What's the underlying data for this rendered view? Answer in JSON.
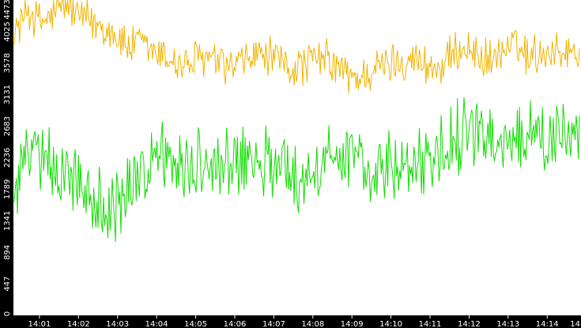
{
  "chart_data": {
    "type": "line",
    "background": "#ffffff",
    "frame_color": "#000000",
    "grid": false,
    "legend": "none",
    "title": "",
    "xlabel": "",
    "ylabel": "",
    "ylim": [
      0,
      4473
    ],
    "x_range": [
      "14:00:20",
      "14:14:52"
    ],
    "y_ticks": [
      "0",
      "447",
      "894",
      "1341",
      "1789",
      "2236",
      "2683",
      "3131",
      "3578",
      "4025",
      "4473"
    ],
    "x_ticks": [
      "14:01",
      "14:02",
      "14:03",
      "14:04",
      "14:05",
      "14:06",
      "14:07",
      "14:08",
      "14:09",
      "14:10",
      "14:11",
      "14:12",
      "14:13",
      "14:14",
      "14"
    ],
    "series": [
      {
        "color": "#f2b400",
        "x_start": "14:00:20",
        "x_end": "14:14:52",
        "anchors": [
          4000,
          4350,
          4150,
          4250,
          4450,
          4250,
          4150,
          4100,
          3950,
          3800,
          3850,
          3700,
          3650,
          3550,
          3600,
          3650,
          3550,
          3500,
          3600,
          3700,
          3650,
          3550,
          3500,
          3600,
          3650,
          3550,
          3400,
          3350,
          3500,
          3550,
          3600,
          3650,
          3550,
          3500,
          3650,
          3800,
          3700,
          3600,
          3750,
          3800,
          3700,
          3700,
          3800,
          3700,
          3750
        ],
        "noise": 350,
        "points": 520
      },
      {
        "color": "#11dd00",
        "x_start": "14:00:20",
        "x_end": "14:14:52",
        "anchors": [
          1700,
          2350,
          2200,
          2100,
          2000,
          1900,
          1700,
          1500,
          1450,
          1800,
          2000,
          2300,
          2250,
          2150,
          2200,
          2000,
          2100,
          2200,
          2150,
          2300,
          2200,
          2100,
          1900,
          2050,
          2150,
          2300,
          2200,
          2250,
          2100,
          2150,
          2200,
          2300,
          2200,
          2250,
          2400,
          2600,
          2550,
          2500,
          2600,
          2550,
          2500,
          2450,
          2400,
          2550,
          2500
        ],
        "noise": 600,
        "points": 520
      }
    ]
  }
}
